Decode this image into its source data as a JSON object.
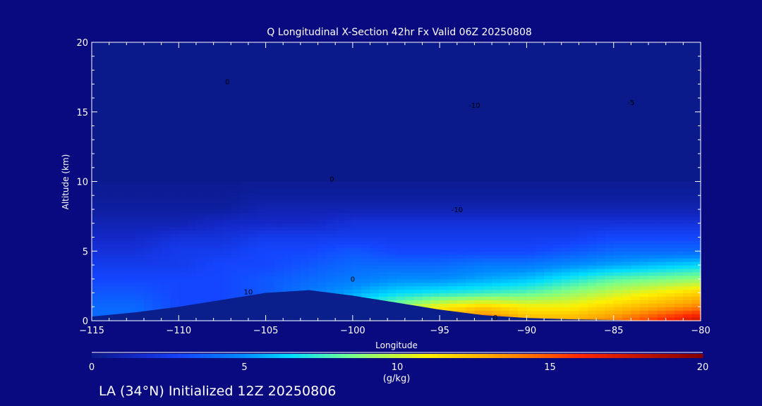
{
  "chart_data": {
    "type": "heatmap",
    "title": "Q Longitudinal X-Section 42hr  Fx Valid 06Z 20250808",
    "xlabel": "Longitude",
    "ylabel": "Altitude (km)",
    "xlim": [
      -115,
      -80
    ],
    "ylim": [
      0,
      20
    ],
    "xticks": [
      "-115",
      "-110",
      "-105",
      "-100",
      "-95",
      "-90",
      "-85",
      "-80"
    ],
    "yticks": [
      "0",
      "5",
      "10",
      "15",
      "20"
    ],
    "colorbar": {
      "label": "(g/kg)",
      "range": [
        0,
        20
      ],
      "ticks": [
        "0",
        "5",
        "10",
        "15",
        "20"
      ]
    },
    "grid_lon": [
      -115,
      -112.5,
      -110,
      -107.5,
      -105,
      -102.5,
      -100,
      -97.5,
      -95,
      -92.5,
      -90,
      -87.5,
      -85,
      -82.5,
      -80
    ],
    "grid_alt": [
      0,
      1,
      2,
      3,
      4,
      5,
      6,
      7,
      8,
      9,
      10
    ],
    "q_values": [
      [
        4,
        4,
        4,
        4,
        5,
        6,
        9,
        11,
        13,
        15,
        13,
        13,
        14,
        16,
        18
      ],
      [
        4,
        4,
        3,
        3,
        4,
        5,
        7,
        9,
        11,
        12,
        11,
        11,
        12,
        13,
        14
      ],
      [
        3.5,
        3.5,
        3,
        3,
        3.5,
        4.5,
        5.5,
        6.5,
        7,
        7.5,
        8,
        9,
        10,
        11,
        12
      ],
      [
        3,
        3,
        3,
        3,
        3.5,
        4,
        4.5,
        5,
        5,
        5.5,
        6,
        7,
        8,
        8.5,
        9
      ],
      [
        2.5,
        2.5,
        2.5,
        3,
        3,
        3.5,
        4,
        4,
        4,
        4.5,
        4.5,
        5,
        5.5,
        6,
        6.5
      ],
      [
        2,
        2,
        2.5,
        2.5,
        3,
        3,
        3.5,
        3,
        3,
        3,
        3,
        3.5,
        4,
        4,
        4
      ],
      [
        1.5,
        1.5,
        2,
        2,
        2.5,
        2.5,
        2.5,
        2.5,
        2.5,
        2.5,
        2.5,
        2.5,
        3,
        3,
        3
      ],
      [
        1,
        1,
        1,
        1.5,
        1.5,
        1.5,
        2,
        2,
        2,
        2,
        2,
        2,
        2,
        2,
        2
      ],
      [
        0.5,
        0.5,
        0.5,
        0.5,
        1,
        1,
        1,
        1,
        1,
        1,
        1,
        1,
        1,
        1,
        1
      ],
      [
        0.3,
        0.3,
        0.3,
        0.3,
        0.5,
        0.5,
        0.5,
        0.5,
        0.5,
        0.5,
        0.5,
        0.5,
        0.5,
        0.5,
        0.5
      ],
      [
        0.2,
        0.2,
        0.2,
        0.2,
        0.2,
        0.2,
        0.2,
        0.2,
        0.2,
        0.2,
        0.2,
        0.2,
        0.2,
        0.2,
        0.2
      ]
    ],
    "terrain_km": [
      0.3,
      0.6,
      1.0,
      1.5,
      2.0,
      2.2,
      1.8,
      1.3,
      0.8,
      0.4,
      0.2,
      0.1,
      0.05,
      0.0,
      0.0
    ],
    "contour_labels": [
      {
        "text": "0",
        "lon": -101.2,
        "alt": 10
      },
      {
        "text": "-10",
        "lon": -93,
        "alt": 15.3
      },
      {
        "text": "-10",
        "lon": -94,
        "alt": 7.8
      },
      {
        "text": "0",
        "lon": -107.2,
        "alt": 17
      },
      {
        "text": "10",
        "lon": -106,
        "alt": 1.9
      },
      {
        "text": "0",
        "lon": -100,
        "alt": 2.8
      },
      {
        "text": "0",
        "lon": -91.8,
        "alt": 0.05
      },
      {
        "text": "-5",
        "lon": -84,
        "alt": 15.5
      }
    ]
  },
  "footer": {
    "caption": "LA (34°N) Initialized 12Z 20250806"
  }
}
